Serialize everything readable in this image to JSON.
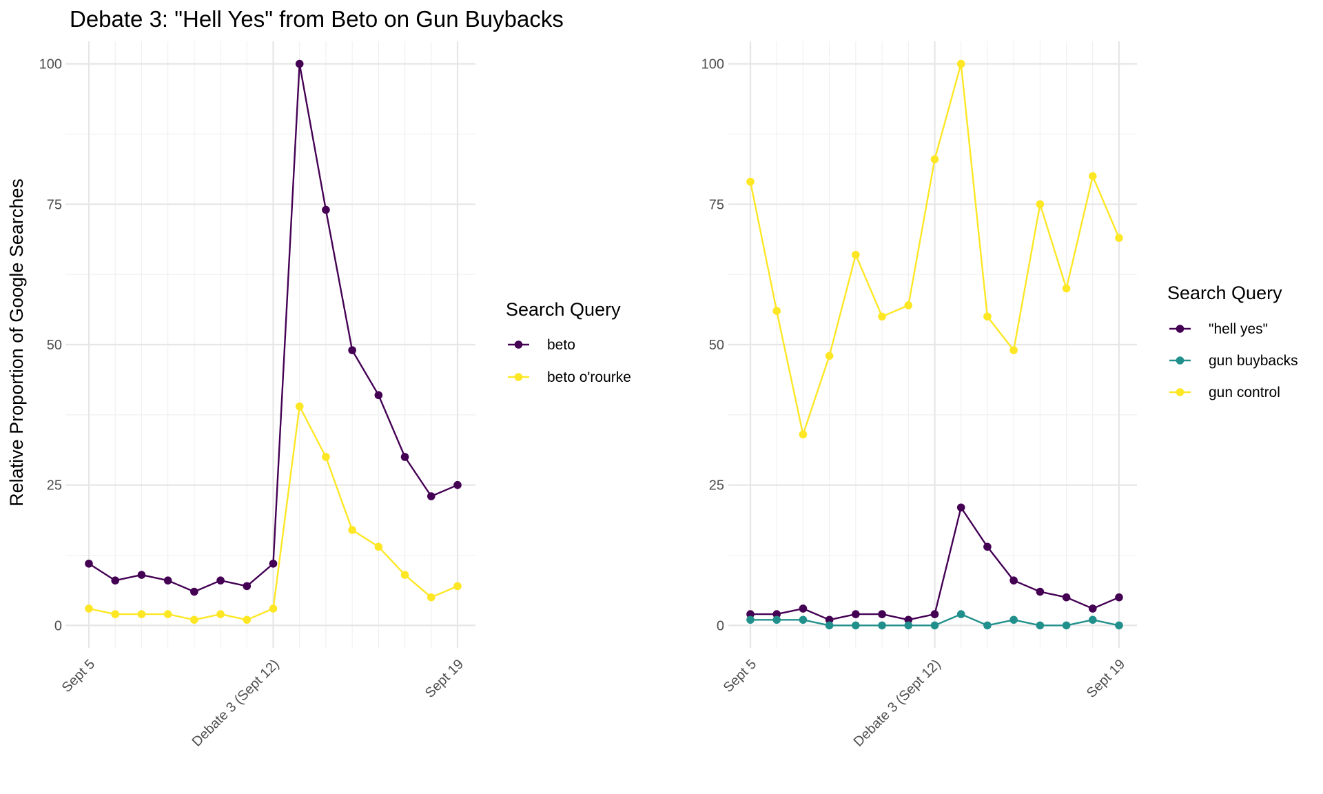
{
  "chart_data": [
    {
      "type": "line",
      "title": "Debate 3: \"Hell Yes\" from Beto on Gun Buybacks",
      "ylabel": "Relative Proportion of Google Searches",
      "xlabel": "",
      "x": [
        "Sept 5",
        "Sept 6",
        "Sept 7",
        "Sept 8",
        "Sept 9",
        "Sept 10",
        "Sept 11",
        "Sept 12",
        "Sept 13",
        "Sept 14",
        "Sept 15",
        "Sept 16",
        "Sept 17",
        "Sept 18",
        "Sept 19"
      ],
      "x_ticks": [
        {
          "index": 0,
          "label": "Sept 5"
        },
        {
          "index": 7,
          "label": "Debate 3 (Sept 12)"
        },
        {
          "index": 14,
          "label": "Sept 19"
        }
      ],
      "ylim": [
        -4,
        104
      ],
      "y_ticks": [
        0,
        25,
        50,
        75,
        100
      ],
      "grid": true,
      "legend_title": "Search Query",
      "legend_placement": "right",
      "series": [
        {
          "name": "beto",
          "color": "#440154",
          "values": [
            11,
            8,
            9,
            8,
            6,
            8,
            7,
            11,
            100,
            74,
            49,
            41,
            30,
            23,
            25
          ]
        },
        {
          "name": "beto o'rourke",
          "color": "#FDE725",
          "values": [
            3,
            2,
            2,
            2,
            1,
            2,
            1,
            3,
            39,
            30,
            17,
            14,
            9,
            5,
            7
          ]
        }
      ]
    },
    {
      "type": "line",
      "title": "",
      "ylabel": "",
      "xlabel": "",
      "x": [
        "Sept 5",
        "Sept 6",
        "Sept 7",
        "Sept 8",
        "Sept 9",
        "Sept 10",
        "Sept 11",
        "Sept 12",
        "Sept 13",
        "Sept 14",
        "Sept 15",
        "Sept 16",
        "Sept 17",
        "Sept 18",
        "Sept 19"
      ],
      "x_ticks": [
        {
          "index": 0,
          "label": "Sept 5"
        },
        {
          "index": 7,
          "label": "Debate 3 (Sept 12)"
        },
        {
          "index": 14,
          "label": "Sept 19"
        }
      ],
      "ylim": [
        -4,
        104
      ],
      "y_ticks": [
        0,
        25,
        50,
        75,
        100
      ],
      "grid": true,
      "legend_title": "Search Query",
      "legend_placement": "right",
      "series": [
        {
          "name": "\"hell yes\"",
          "color": "#440154",
          "values": [
            2,
            2,
            3,
            1,
            2,
            2,
            1,
            2,
            21,
            14,
            8,
            6,
            5,
            3,
            5
          ]
        },
        {
          "name": "gun buybacks",
          "color": "#21908C",
          "values": [
            1,
            1,
            1,
            0,
            0,
            0,
            0,
            0,
            2,
            0,
            1,
            0,
            0,
            1,
            0
          ]
        },
        {
          "name": "gun control",
          "color": "#FDE725",
          "values": [
            79,
            56,
            34,
            48,
            66,
            55,
            57,
            83,
            100,
            55,
            49,
            75,
            60,
            80,
            69
          ]
        }
      ]
    }
  ]
}
